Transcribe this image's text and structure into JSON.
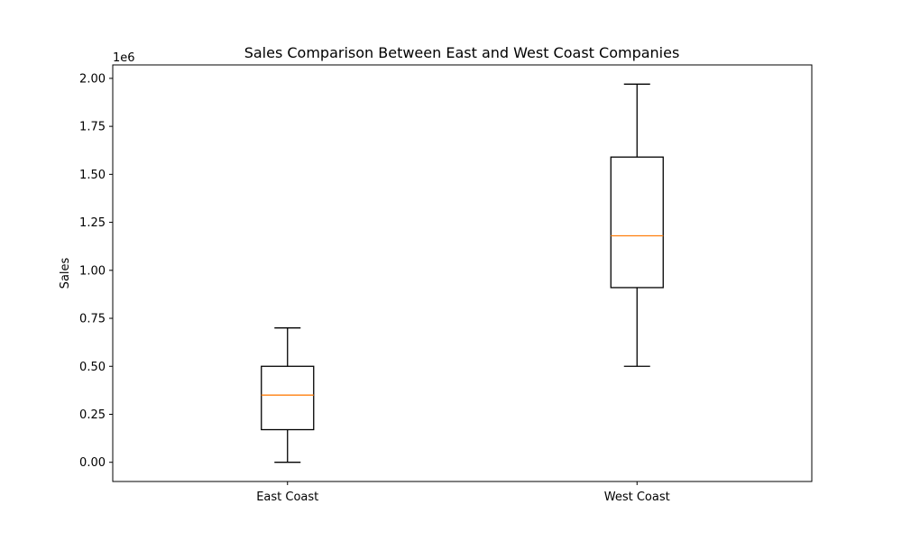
{
  "chart_data": {
    "type": "boxplot",
    "title": "Sales Comparison Between East and West Coast Companies",
    "xlabel": "",
    "ylabel": "Sales",
    "y_offset_label": "1e6",
    "ylim": [
      -0.1,
      2.07
    ],
    "yticks": [
      0.0,
      0.25,
      0.5,
      0.75,
      1.0,
      1.25,
      1.5,
      1.75,
      2.0
    ],
    "ytick_labels": [
      "0.00",
      "0.25",
      "0.50",
      "0.75",
      "1.00",
      "1.25",
      "1.50",
      "1.75",
      "2.00"
    ],
    "categories": [
      "East Coast",
      "West Coast"
    ],
    "boxes": [
      {
        "category": "East Coast",
        "whisker_low": 0.0,
        "q1": 0.17,
        "median": 0.35,
        "q3": 0.5,
        "whisker_high": 0.7
      },
      {
        "category": "West Coast",
        "whisker_low": 0.5,
        "q1": 0.91,
        "median": 1.18,
        "q3": 1.59,
        "whisker_high": 1.97
      }
    ],
    "grid": false,
    "colors": {
      "box": "#000000",
      "median": "#ff7f0e"
    }
  }
}
